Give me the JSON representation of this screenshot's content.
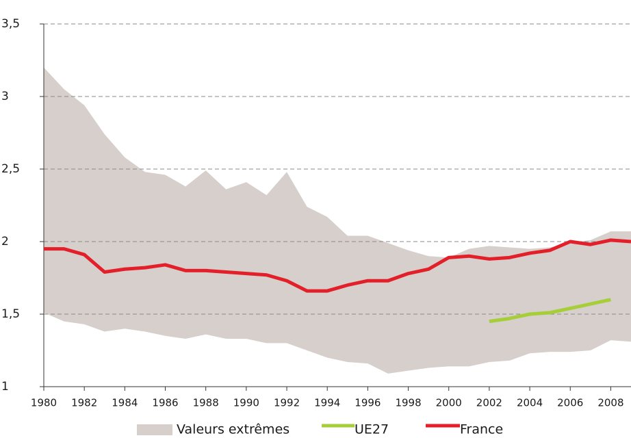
{
  "chart_data": {
    "type": "line",
    "x": [
      1980,
      1981,
      1982,
      1983,
      1984,
      1985,
      1986,
      1987,
      1988,
      1989,
      1990,
      1991,
      1992,
      1993,
      1994,
      1995,
      1996,
      1997,
      1998,
      1999,
      2000,
      2001,
      2002,
      2003,
      2004,
      2005,
      2006,
      2007,
      2008,
      2009
    ],
    "series": [
      {
        "name": "Valeurs extrêmes",
        "color": "#d6cfcb",
        "high": [
          3.2,
          3.05,
          2.94,
          2.74,
          2.58,
          2.48,
          2.46,
          2.38,
          2.49,
          2.36,
          2.41,
          2.32,
          2.48,
          2.24,
          2.17,
          2.04,
          2.04,
          1.99,
          1.94,
          1.9,
          1.89,
          1.95,
          1.97,
          1.96,
          1.95,
          1.96,
          1.99,
          2.01,
          2.07,
          2.07
        ],
        "low": [
          1.51,
          1.45,
          1.43,
          1.38,
          1.4,
          1.38,
          1.35,
          1.33,
          1.36,
          1.33,
          1.33,
          1.3,
          1.3,
          1.25,
          1.2,
          1.17,
          1.16,
          1.09,
          1.11,
          1.13,
          1.14,
          1.14,
          1.17,
          1.18,
          1.23,
          1.24,
          1.24,
          1.25,
          1.32,
          1.31
        ]
      },
      {
        "name": "UE27",
        "color": "#a6ce39",
        "values": [
          null,
          null,
          null,
          null,
          null,
          null,
          null,
          null,
          null,
          null,
          null,
          null,
          null,
          null,
          null,
          null,
          null,
          null,
          null,
          null,
          null,
          null,
          1.45,
          1.47,
          1.5,
          1.51,
          1.54,
          1.57,
          1.6,
          null
        ]
      },
      {
        "name": "France",
        "color": "#e3202a",
        "values": [
          1.95,
          1.95,
          1.91,
          1.79,
          1.81,
          1.82,
          1.84,
          1.8,
          1.8,
          1.79,
          1.78,
          1.77,
          1.73,
          1.66,
          1.66,
          1.7,
          1.73,
          1.73,
          1.78,
          1.81,
          1.89,
          1.9,
          1.88,
          1.89,
          1.92,
          1.94,
          2.0,
          1.98,
          2.01,
          2.0
        ]
      }
    ],
    "xlim": [
      1980,
      2009
    ],
    "xticks": [
      1980,
      1982,
      1984,
      1986,
      1988,
      1990,
      1992,
      1994,
      1996,
      1998,
      2000,
      2002,
      2004,
      2006,
      2008
    ],
    "ylim": [
      1,
      3.5
    ],
    "yticks": [
      1,
      {
        "value": 1.5,
        "label": "1,5"
      },
      2,
      {
        "value": 2.5,
        "label": "2,5"
      },
      3,
      {
        "value": 3.5,
        "label": "3,5"
      }
    ],
    "grid": true
  }
}
